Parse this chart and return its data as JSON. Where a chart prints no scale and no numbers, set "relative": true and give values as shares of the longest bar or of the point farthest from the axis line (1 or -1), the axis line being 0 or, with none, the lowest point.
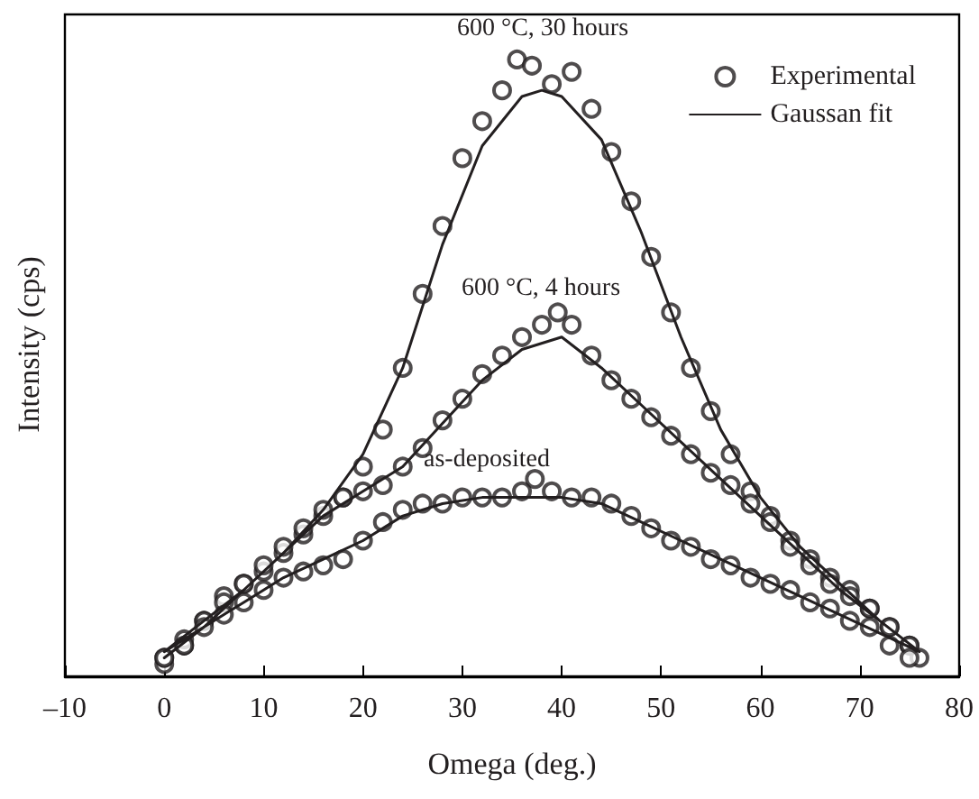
{
  "chart_data": {
    "type": "scatter",
    "relative": true,
    "xlabel": "Omega (deg.)",
    "ylabel": "Intensity (cps)",
    "xlim": [
      -10,
      80
    ],
    "xticks": [
      {
        "value": -10,
        "label": "–10"
      },
      0,
      10,
      20,
      30,
      40,
      50,
      60,
      70,
      80
    ],
    "grid": false,
    "legend": "top right",
    "series": [
      {
        "name": "Experimental",
        "marker": "circle",
        "color": "#231f20",
        "x": [
          0,
          2,
          4,
          6,
          8,
          10,
          12,
          14,
          16,
          18,
          20,
          22,
          24,
          26,
          28,
          30,
          32,
          34,
          35.5,
          37,
          39,
          41,
          43,
          45,
          47,
          49,
          51,
          53,
          55,
          57,
          59,
          61,
          63,
          65,
          67,
          69,
          71,
          73,
          75,
          76,
          0,
          2,
          4,
          6,
          8,
          10,
          12,
          14,
          16,
          18,
          20,
          22,
          24,
          26,
          28,
          30,
          32,
          34,
          36,
          38,
          39.6,
          41,
          43,
          45,
          47,
          49,
          51,
          53,
          55,
          57,
          59,
          61,
          63,
          65,
          67,
          69,
          71,
          73,
          75,
          0,
          2,
          4,
          6,
          8,
          10,
          12,
          14,
          16,
          18,
          20,
          22,
          24,
          26,
          28,
          30,
          32,
          34,
          36,
          37.3,
          39,
          41,
          43,
          45,
          47,
          49,
          51,
          53,
          55,
          57,
          59,
          61,
          63,
          65,
          67,
          69,
          71,
          73,
          75
        ],
        "values": [
          0.02,
          0.05,
          0.09,
          0.13,
          0.15,
          0.17,
          0.2,
          0.23,
          0.26,
          0.29,
          0.34,
          0.4,
          0.5,
          0.62,
          0.73,
          0.84,
          0.9,
          0.95,
          1.0,
          0.99,
          0.96,
          0.98,
          0.92,
          0.85,
          0.77,
          0.68,
          0.59,
          0.5,
          0.43,
          0.36,
          0.3,
          0.26,
          0.22,
          0.19,
          0.16,
          0.14,
          0.11,
          0.08,
          0.05,
          0.03,
          0.03,
          0.06,
          0.09,
          0.12,
          0.15,
          0.18,
          0.21,
          0.24,
          0.27,
          0.29,
          0.3,
          0.31,
          0.34,
          0.37,
          0.415,
          0.45,
          0.49,
          0.52,
          0.55,
          0.57,
          0.59,
          0.57,
          0.52,
          0.48,
          0.45,
          0.42,
          0.39,
          0.36,
          0.33,
          0.31,
          0.28,
          0.25,
          0.21,
          0.18,
          0.15,
          0.13,
          0.11,
          0.08,
          0.05,
          0.03,
          0.05,
          0.08,
          0.1,
          0.12,
          0.14,
          0.16,
          0.17,
          0.18,
          0.19,
          0.22,
          0.25,
          0.27,
          0.28,
          0.28,
          0.29,
          0.29,
          0.29,
          0.3,
          0.32,
          0.3,
          0.29,
          0.29,
          0.28,
          0.26,
          0.24,
          0.22,
          0.21,
          0.19,
          0.18,
          0.16,
          0.15,
          0.14,
          0.12,
          0.11,
          0.09,
          0.08,
          0.05,
          0.03
        ]
      },
      {
        "name": "Gaussan fit",
        "type": "line",
        "color": "#231f20",
        "line_style": "solid",
        "x": [
          0,
          4,
          8,
          12,
          16,
          20,
          24,
          28,
          32,
          36,
          38,
          40,
          44,
          48,
          52,
          56,
          60,
          64,
          68,
          72,
          76,
          null,
          0,
          4,
          8,
          12,
          16,
          20,
          24,
          28,
          32,
          36,
          40,
          44,
          48,
          52,
          56,
          60,
          64,
          68,
          72,
          76,
          null,
          0,
          4,
          8,
          12,
          16,
          20,
          24,
          28,
          32,
          36,
          40,
          44,
          48,
          52,
          56,
          60,
          64,
          68,
          72,
          76
        ],
        "values": [
          0.03,
          0.08,
          0.14,
          0.2,
          0.27,
          0.36,
          0.5,
          0.7,
          0.86,
          0.94,
          0.95,
          0.94,
          0.87,
          0.72,
          0.55,
          0.4,
          0.29,
          0.21,
          0.15,
          0.09,
          0.04,
          null,
          0.04,
          0.09,
          0.14,
          0.2,
          0.26,
          0.3,
          0.34,
          0.41,
          0.48,
          0.53,
          0.55,
          0.5,
          0.44,
          0.38,
          0.32,
          0.26,
          0.2,
          0.14,
          0.09,
          0.04,
          null,
          0.04,
          0.08,
          0.12,
          0.16,
          0.19,
          0.22,
          0.26,
          0.28,
          0.29,
          0.29,
          0.29,
          0.28,
          0.25,
          0.22,
          0.19,
          0.16,
          0.13,
          0.1,
          0.07,
          0.04
        ]
      }
    ],
    "annotations": [
      "600 °C, 30 hours",
      "600 °C, 4 hours",
      "as-deposited"
    ]
  }
}
